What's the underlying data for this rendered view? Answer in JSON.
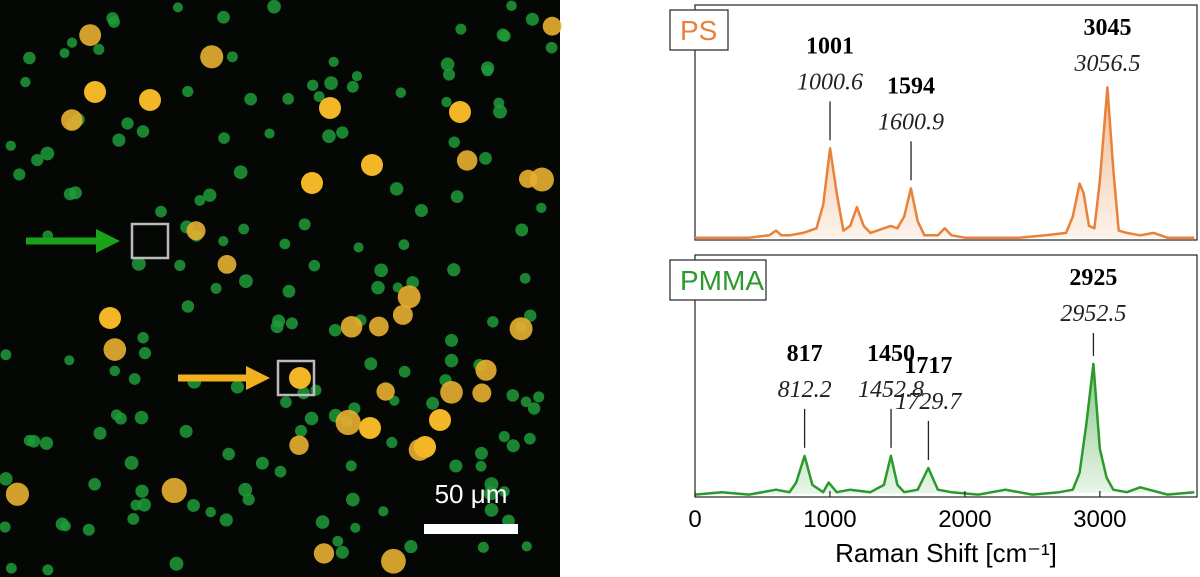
{
  "micrograph": {
    "scale_label": "50 μm"
  },
  "chart_data": [
    {
      "type": "line",
      "series": [
        {
          "name": "PS",
          "color": "#e8823a",
          "x": [
            0,
            200,
            400,
            550,
            600,
            640,
            700,
            800,
            900,
            950,
            1001,
            1050,
            1100,
            1150,
            1200,
            1250,
            1300,
            1400,
            1450,
            1500,
            1550,
            1600,
            1650,
            1700,
            1800,
            1850,
            1900,
            2000,
            2200,
            2400,
            2600,
            2750,
            2800,
            2850,
            2880,
            2920,
            2960,
            3000,
            3056,
            3100,
            3140,
            3200,
            3300,
            3400,
            3500,
            3700
          ],
          "values": [
            0.01,
            0.01,
            0.01,
            0.02,
            0.04,
            0.02,
            0.02,
            0.03,
            0.05,
            0.15,
            0.39,
            0.2,
            0.04,
            0.06,
            0.14,
            0.06,
            0.03,
            0.05,
            0.06,
            0.05,
            0.1,
            0.22,
            0.08,
            0.02,
            0.02,
            0.05,
            0.02,
            0.01,
            0.01,
            0.01,
            0.02,
            0.03,
            0.1,
            0.24,
            0.2,
            0.06,
            0.05,
            0.25,
            0.65,
            0.3,
            0.04,
            0.03,
            0.02,
            0.03,
            0.01,
            0.01
          ]
        }
      ],
      "peaks": [
        {
          "reference": "1001",
          "measured": 1000.6,
          "height": 0.39
        },
        {
          "reference": "1594",
          "measured": 1600.9,
          "height": 0.22
        },
        {
          "reference": "3045",
          "measured": 3056.5,
          "height": 0.65
        }
      ],
      "xlim": [
        0,
        3720
      ],
      "ylim": [
        0,
        1
      ]
    },
    {
      "type": "line",
      "series": [
        {
          "name": "PMMA",
          "color": "#2a9a2a",
          "x": [
            0,
            200,
            400,
            600,
            700,
            750,
            812,
            870,
            950,
            990,
            1050,
            1150,
            1300,
            1400,
            1452,
            1500,
            1550,
            1650,
            1729,
            1800,
            1900,
            2100,
            2300,
            2500,
            2700,
            2800,
            2850,
            2900,
            2952,
            3000,
            3050,
            3100,
            3200,
            3300,
            3500,
            3700
          ],
          "values": [
            0.01,
            0.02,
            0.01,
            0.03,
            0.02,
            0.06,
            0.17,
            0.05,
            0.02,
            0.06,
            0.02,
            0.03,
            0.02,
            0.05,
            0.17,
            0.05,
            0.02,
            0.03,
            0.12,
            0.03,
            0.02,
            0.01,
            0.03,
            0.01,
            0.02,
            0.03,
            0.1,
            0.3,
            0.55,
            0.2,
            0.08,
            0.03,
            0.02,
            0.04,
            0.01,
            0.02
          ]
        }
      ],
      "peaks": [
        {
          "reference": "817",
          "measured": 812.2,
          "height": 0.17
        },
        {
          "reference": "1450",
          "measured": 1452.8,
          "height": 0.17
        },
        {
          "reference": "1717",
          "measured": 1729.7,
          "height": 0.12
        },
        {
          "reference": "2925",
          "measured": 2952.5,
          "height": 0.55
        }
      ],
      "xlim": [
        0,
        3720
      ],
      "ylim": [
        0,
        1
      ],
      "xticks": [
        0,
        1000,
        2000,
        3000
      ],
      "xlabel": "Raman Shift [cm⁻¹]"
    }
  ]
}
